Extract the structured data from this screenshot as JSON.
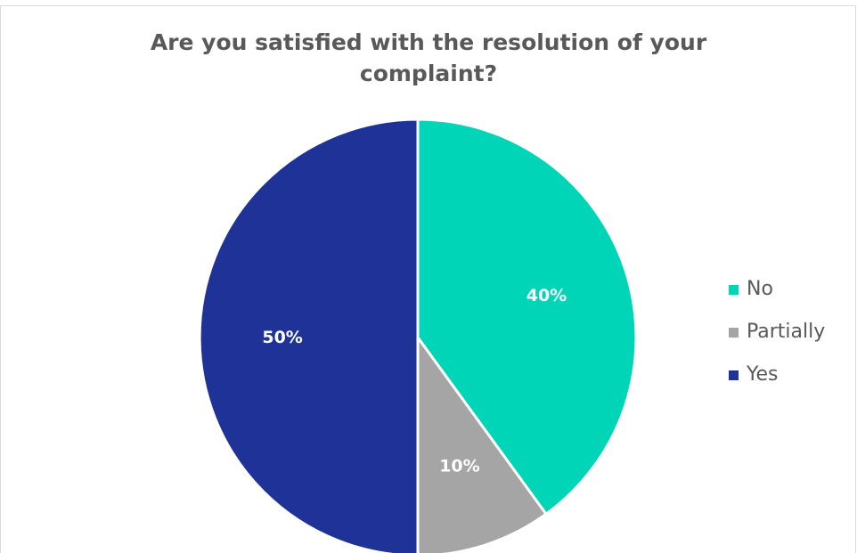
{
  "chart_data": {
    "type": "pie",
    "title": "Are you satisfied with the resolution of your complaint?",
    "title_lines": [
      "Are you satisfied with the resolution of your",
      "complaint?"
    ],
    "slices": [
      {
        "name": "No",
        "value": 40,
        "label": "40%",
        "color": "#00D5B7"
      },
      {
        "name": "Partially",
        "value": 10,
        "label": "10%",
        "color": "#A5A5A5"
      },
      {
        "name": "Yes",
        "value": 50,
        "label": "50%",
        "color": "#1F3297"
      }
    ],
    "start_angle_deg": 0,
    "direction": "clockwise",
    "legend_position": "right"
  }
}
